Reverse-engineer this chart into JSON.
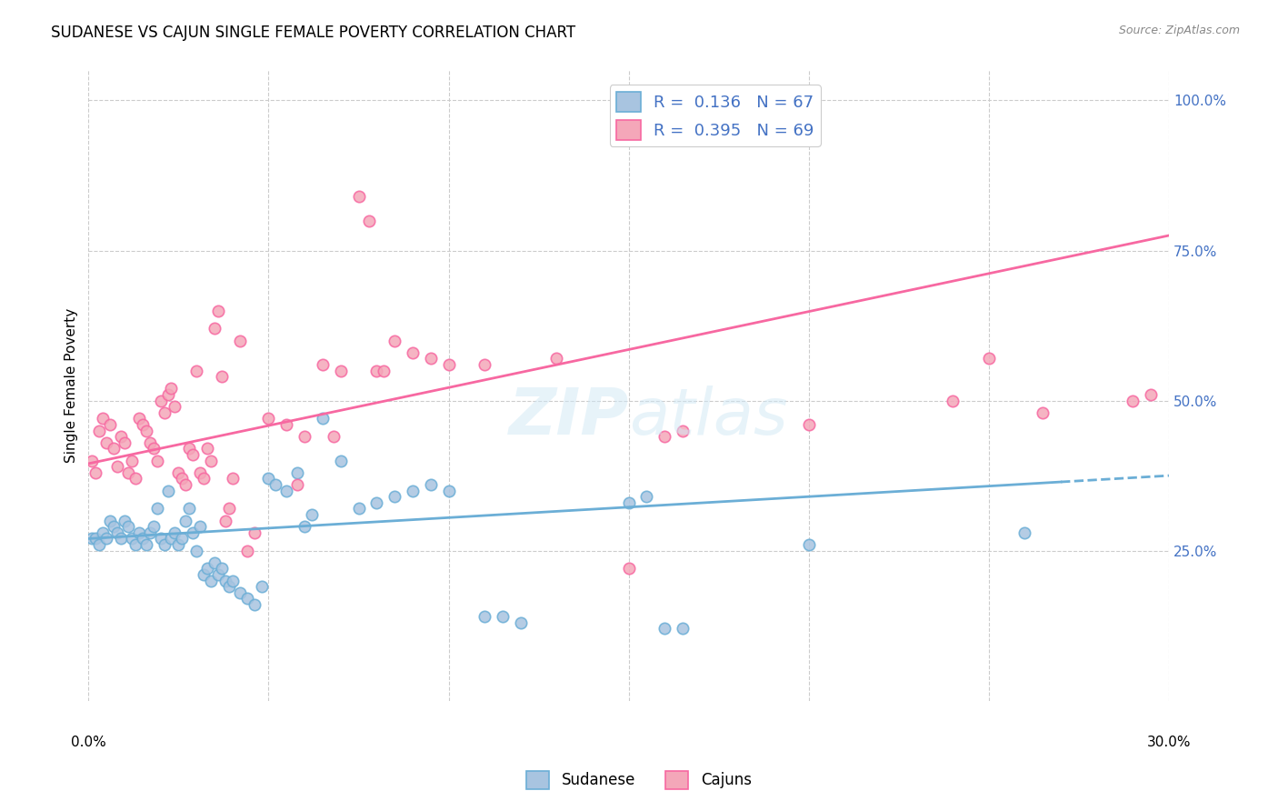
{
  "title": "SUDANESE VS CAJUN SINGLE FEMALE POVERTY CORRELATION CHART",
  "source": "Source: ZipAtlas.com",
  "ylabel": "Single Female Poverty",
  "ytick_labels": [
    "25.0%",
    "50.0%",
    "75.0%",
    "100.0%"
  ],
  "ytick_values": [
    0.25,
    0.5,
    0.75,
    1.0
  ],
  "xlim": [
    0.0,
    0.3
  ],
  "ylim": [
    0.0,
    1.05
  ],
  "sudanese_color": "#a8c4e0",
  "cajun_color": "#f4a7b9",
  "sudanese_line_color": "#6baed6",
  "cajun_line_color": "#f768a1",
  "trend_line_sudanese": {
    "x0": 0.0,
    "y0": 0.27,
    "x1": 0.3,
    "y1": 0.375
  },
  "trend_line_cajun": {
    "x0": 0.0,
    "y0": 0.395,
    "x1": 0.3,
    "y1": 0.775
  },
  "trend_sudanese_solid_end": 0.27,
  "background_color": "#ffffff",
  "grid_color": "#cccccc",
  "sudanese_scatter": [
    [
      0.001,
      0.27
    ],
    [
      0.002,
      0.27
    ],
    [
      0.003,
      0.26
    ],
    [
      0.004,
      0.28
    ],
    [
      0.005,
      0.27
    ],
    [
      0.006,
      0.3
    ],
    [
      0.007,
      0.29
    ],
    [
      0.008,
      0.28
    ],
    [
      0.009,
      0.27
    ],
    [
      0.01,
      0.3
    ],
    [
      0.011,
      0.29
    ],
    [
      0.012,
      0.27
    ],
    [
      0.013,
      0.26
    ],
    [
      0.014,
      0.28
    ],
    [
      0.015,
      0.27
    ],
    [
      0.016,
      0.26
    ],
    [
      0.017,
      0.28
    ],
    [
      0.018,
      0.29
    ],
    [
      0.019,
      0.32
    ],
    [
      0.02,
      0.27
    ],
    [
      0.021,
      0.26
    ],
    [
      0.022,
      0.35
    ],
    [
      0.023,
      0.27
    ],
    [
      0.024,
      0.28
    ],
    [
      0.025,
      0.26
    ],
    [
      0.026,
      0.27
    ],
    [
      0.027,
      0.3
    ],
    [
      0.028,
      0.32
    ],
    [
      0.029,
      0.28
    ],
    [
      0.03,
      0.25
    ],
    [
      0.031,
      0.29
    ],
    [
      0.032,
      0.21
    ],
    [
      0.033,
      0.22
    ],
    [
      0.034,
      0.2
    ],
    [
      0.035,
      0.23
    ],
    [
      0.036,
      0.21
    ],
    [
      0.037,
      0.22
    ],
    [
      0.038,
      0.2
    ],
    [
      0.039,
      0.19
    ],
    [
      0.04,
      0.2
    ],
    [
      0.042,
      0.18
    ],
    [
      0.044,
      0.17
    ],
    [
      0.046,
      0.16
    ],
    [
      0.048,
      0.19
    ],
    [
      0.05,
      0.37
    ],
    [
      0.052,
      0.36
    ],
    [
      0.055,
      0.35
    ],
    [
      0.058,
      0.38
    ],
    [
      0.06,
      0.29
    ],
    [
      0.062,
      0.31
    ],
    [
      0.065,
      0.47
    ],
    [
      0.07,
      0.4
    ],
    [
      0.075,
      0.32
    ],
    [
      0.08,
      0.33
    ],
    [
      0.085,
      0.34
    ],
    [
      0.09,
      0.35
    ],
    [
      0.095,
      0.36
    ],
    [
      0.1,
      0.35
    ],
    [
      0.11,
      0.14
    ],
    [
      0.115,
      0.14
    ],
    [
      0.12,
      0.13
    ],
    [
      0.15,
      0.33
    ],
    [
      0.155,
      0.34
    ],
    [
      0.16,
      0.12
    ],
    [
      0.165,
      0.12
    ],
    [
      0.2,
      0.26
    ],
    [
      0.26,
      0.28
    ]
  ],
  "cajun_scatter": [
    [
      0.001,
      0.4
    ],
    [
      0.002,
      0.38
    ],
    [
      0.003,
      0.45
    ],
    [
      0.004,
      0.47
    ],
    [
      0.005,
      0.43
    ],
    [
      0.006,
      0.46
    ],
    [
      0.007,
      0.42
    ],
    [
      0.008,
      0.39
    ],
    [
      0.009,
      0.44
    ],
    [
      0.01,
      0.43
    ],
    [
      0.011,
      0.38
    ],
    [
      0.012,
      0.4
    ],
    [
      0.013,
      0.37
    ],
    [
      0.014,
      0.47
    ],
    [
      0.015,
      0.46
    ],
    [
      0.016,
      0.45
    ],
    [
      0.017,
      0.43
    ],
    [
      0.018,
      0.42
    ],
    [
      0.019,
      0.4
    ],
    [
      0.02,
      0.5
    ],
    [
      0.021,
      0.48
    ],
    [
      0.022,
      0.51
    ],
    [
      0.023,
      0.52
    ],
    [
      0.024,
      0.49
    ],
    [
      0.025,
      0.38
    ],
    [
      0.026,
      0.37
    ],
    [
      0.027,
      0.36
    ],
    [
      0.028,
      0.42
    ],
    [
      0.029,
      0.41
    ],
    [
      0.03,
      0.55
    ],
    [
      0.031,
      0.38
    ],
    [
      0.032,
      0.37
    ],
    [
      0.033,
      0.42
    ],
    [
      0.034,
      0.4
    ],
    [
      0.035,
      0.62
    ],
    [
      0.036,
      0.65
    ],
    [
      0.037,
      0.54
    ],
    [
      0.038,
      0.3
    ],
    [
      0.039,
      0.32
    ],
    [
      0.04,
      0.37
    ],
    [
      0.042,
      0.6
    ],
    [
      0.044,
      0.25
    ],
    [
      0.046,
      0.28
    ],
    [
      0.05,
      0.47
    ],
    [
      0.055,
      0.46
    ],
    [
      0.058,
      0.36
    ],
    [
      0.06,
      0.44
    ],
    [
      0.065,
      0.56
    ],
    [
      0.068,
      0.44
    ],
    [
      0.07,
      0.55
    ],
    [
      0.075,
      0.84
    ],
    [
      0.078,
      0.8
    ],
    [
      0.08,
      0.55
    ],
    [
      0.082,
      0.55
    ],
    [
      0.085,
      0.6
    ],
    [
      0.09,
      0.58
    ],
    [
      0.095,
      0.57
    ],
    [
      0.1,
      0.56
    ],
    [
      0.11,
      0.56
    ],
    [
      0.13,
      0.57
    ],
    [
      0.15,
      0.22
    ],
    [
      0.16,
      0.44
    ],
    [
      0.165,
      0.45
    ],
    [
      0.2,
      0.46
    ],
    [
      0.24,
      0.5
    ],
    [
      0.25,
      0.57
    ],
    [
      0.265,
      0.48
    ],
    [
      0.29,
      0.5
    ],
    [
      0.295,
      0.51
    ]
  ]
}
